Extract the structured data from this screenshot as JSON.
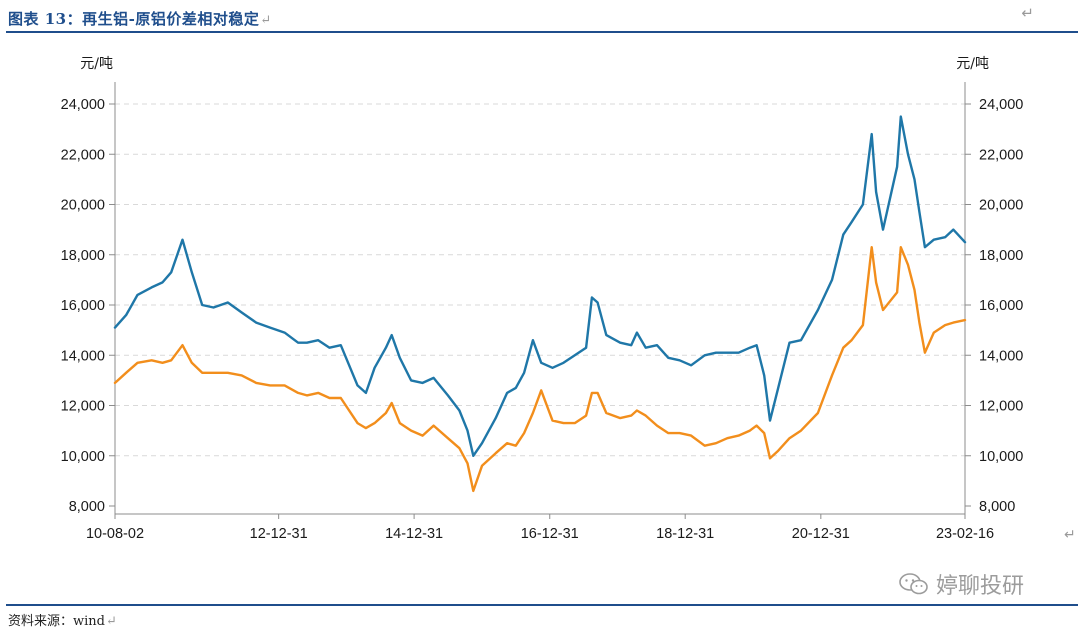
{
  "header": {
    "title": "图表 13：再生铝-原铝价差相对稳定",
    "return_mark": "↵"
  },
  "footer": {
    "source": "资料来源：wind",
    "return_mark": "↵"
  },
  "watermark": {
    "text": "婷聊投研",
    "icon": "wechat-icon"
  },
  "colors": {
    "blue_series": "#1f77a8",
    "orange_series": "#f28e1c",
    "rule": "#1f4e8c",
    "grid": "#d9d9d9"
  },
  "chart_data": {
    "type": "line",
    "left_unit": "元/吨",
    "right_unit": "元/吨",
    "xlim": [
      "2010-08-02",
      "2023-02-16"
    ],
    "ylim_left": [
      8000,
      24000
    ],
    "ylim_right": [
      8000,
      24000
    ],
    "y_ticks": [
      8000,
      10000,
      12000,
      14000,
      16000,
      18000,
      20000,
      22000,
      24000
    ],
    "y_tick_labels": [
      "8,000",
      "10,000",
      "12,000",
      "14,000",
      "16,000",
      "18,000",
      "20,000",
      "22,000",
      "24,000"
    ],
    "x_ticks": [
      "2010-08-02",
      "2012-12-31",
      "2014-12-31",
      "2016-12-31",
      "2018-12-31",
      "2020-12-31",
      "2023-02-16"
    ],
    "x_tick_labels": [
      "10-08-02",
      "12-12-31",
      "14-12-31",
      "16-12-31",
      "18-12-31",
      "20-12-31",
      "23-02-16"
    ],
    "grid": "horizontal dashed",
    "legend": "none",
    "series": [
      {
        "color": "#1f77a8",
        "points": [
          [
            "2010-08-02",
            15100
          ],
          [
            "2010-10-01",
            15600
          ],
          [
            "2010-12-01",
            16400
          ],
          [
            "2011-02-15",
            16700
          ],
          [
            "2011-04-15",
            16900
          ],
          [
            "2011-06-01",
            17300
          ],
          [
            "2011-08-01",
            18600
          ],
          [
            "2011-09-20",
            17300
          ],
          [
            "2011-11-15",
            16000
          ],
          [
            "2012-01-15",
            15900
          ],
          [
            "2012-04-01",
            16100
          ],
          [
            "2012-06-15",
            15700
          ],
          [
            "2012-09-01",
            15300
          ],
          [
            "2012-11-15",
            15100
          ],
          [
            "2013-02-01",
            14900
          ],
          [
            "2013-04-15",
            14500
          ],
          [
            "2013-06-01",
            14500
          ],
          [
            "2013-08-01",
            14600
          ],
          [
            "2013-10-01",
            14300
          ],
          [
            "2013-12-01",
            14400
          ],
          [
            "2014-03-01",
            12800
          ],
          [
            "2014-04-15",
            12500
          ],
          [
            "2014-06-01",
            13500
          ],
          [
            "2014-08-01",
            14300
          ],
          [
            "2014-09-01",
            14800
          ],
          [
            "2014-10-15",
            13900
          ],
          [
            "2014-12-15",
            13000
          ],
          [
            "2015-02-15",
            12900
          ],
          [
            "2015-04-15",
            13100
          ],
          [
            "2015-07-01",
            12400
          ],
          [
            "2015-09-01",
            11800
          ],
          [
            "2015-10-15",
            11000
          ],
          [
            "2015-11-15",
            10000
          ],
          [
            "2016-01-01",
            10500
          ],
          [
            "2016-03-15",
            11500
          ],
          [
            "2016-05-15",
            12500
          ],
          [
            "2016-07-01",
            12700
          ],
          [
            "2016-08-15",
            13300
          ],
          [
            "2016-10-01",
            14600
          ],
          [
            "2016-11-15",
            13700
          ],
          [
            "2017-01-15",
            13500
          ],
          [
            "2017-03-15",
            13700
          ],
          [
            "2017-05-15",
            14000
          ],
          [
            "2017-07-15",
            14300
          ],
          [
            "2017-08-15",
            16300
          ],
          [
            "2017-09-15",
            16100
          ],
          [
            "2017-11-01",
            14800
          ],
          [
            "2018-01-15",
            14500
          ],
          [
            "2018-03-15",
            14400
          ],
          [
            "2018-04-15",
            14900
          ],
          [
            "2018-06-01",
            14300
          ],
          [
            "2018-08-01",
            14400
          ],
          [
            "2018-10-01",
            13900
          ],
          [
            "2018-12-01",
            13800
          ],
          [
            "2019-02-01",
            13600
          ],
          [
            "2019-04-15",
            14000
          ],
          [
            "2019-06-15",
            14100
          ],
          [
            "2019-08-15",
            14100
          ],
          [
            "2019-10-15",
            14100
          ],
          [
            "2019-12-15",
            14300
          ],
          [
            "2020-01-20",
            14400
          ],
          [
            "2020-03-01",
            13200
          ],
          [
            "2020-04-01",
            11400
          ],
          [
            "2020-05-15",
            12700
          ],
          [
            "2020-07-15",
            14500
          ],
          [
            "2020-09-15",
            14600
          ],
          [
            "2020-12-15",
            15800
          ],
          [
            "2021-03-01",
            17000
          ],
          [
            "2021-05-01",
            18800
          ],
          [
            "2021-06-15",
            19300
          ],
          [
            "2021-08-15",
            20000
          ],
          [
            "2021-10-01",
            22800
          ],
          [
            "2021-10-25",
            20500
          ],
          [
            "2021-12-01",
            19000
          ],
          [
            "2022-02-15",
            21500
          ],
          [
            "2022-03-07",
            23500
          ],
          [
            "2022-04-15",
            22000
          ],
          [
            "2022-05-20",
            21000
          ],
          [
            "2022-06-15",
            19700
          ],
          [
            "2022-07-15",
            18300
          ],
          [
            "2022-09-01",
            18600
          ],
          [
            "2022-11-01",
            18700
          ],
          [
            "2022-12-15",
            19000
          ],
          [
            "2023-02-16",
            18500
          ]
        ]
      },
      {
        "color": "#f28e1c",
        "points": [
          [
            "2010-08-02",
            12900
          ],
          [
            "2010-10-01",
            13300
          ],
          [
            "2010-12-01",
            13700
          ],
          [
            "2011-02-15",
            13800
          ],
          [
            "2011-04-15",
            13700
          ],
          [
            "2011-06-01",
            13800
          ],
          [
            "2011-08-01",
            14400
          ],
          [
            "2011-09-20",
            13700
          ],
          [
            "2011-11-15",
            13300
          ],
          [
            "2012-01-15",
            13300
          ],
          [
            "2012-04-01",
            13300
          ],
          [
            "2012-06-15",
            13200
          ],
          [
            "2012-09-01",
            12900
          ],
          [
            "2012-11-15",
            12800
          ],
          [
            "2013-02-01",
            12800
          ],
          [
            "2013-04-15",
            12500
          ],
          [
            "2013-06-01",
            12400
          ],
          [
            "2013-08-01",
            12500
          ],
          [
            "2013-10-01",
            12300
          ],
          [
            "2013-12-01",
            12300
          ],
          [
            "2014-03-01",
            11300
          ],
          [
            "2014-04-15",
            11100
          ],
          [
            "2014-06-01",
            11300
          ],
          [
            "2014-08-01",
            11700
          ],
          [
            "2014-09-01",
            12100
          ],
          [
            "2014-10-15",
            11300
          ],
          [
            "2014-12-15",
            11000
          ],
          [
            "2015-02-15",
            10800
          ],
          [
            "2015-04-15",
            11200
          ],
          [
            "2015-07-01",
            10700
          ],
          [
            "2015-09-01",
            10300
          ],
          [
            "2015-10-15",
            9700
          ],
          [
            "2015-11-15",
            8600
          ],
          [
            "2016-01-01",
            9600
          ],
          [
            "2016-03-15",
            10100
          ],
          [
            "2016-05-15",
            10500
          ],
          [
            "2016-07-01",
            10400
          ],
          [
            "2016-08-15",
            10900
          ],
          [
            "2016-10-01",
            11700
          ],
          [
            "2016-11-15",
            12600
          ],
          [
            "2017-01-15",
            11400
          ],
          [
            "2017-03-15",
            11300
          ],
          [
            "2017-05-15",
            11300
          ],
          [
            "2017-07-15",
            11600
          ],
          [
            "2017-08-15",
            12500
          ],
          [
            "2017-09-15",
            12500
          ],
          [
            "2017-11-01",
            11700
          ],
          [
            "2018-01-15",
            11500
          ],
          [
            "2018-03-15",
            11600
          ],
          [
            "2018-04-15",
            11800
          ],
          [
            "2018-06-01",
            11600
          ],
          [
            "2018-08-01",
            11200
          ],
          [
            "2018-10-01",
            10900
          ],
          [
            "2018-12-01",
            10900
          ],
          [
            "2019-02-01",
            10800
          ],
          [
            "2019-04-15",
            10400
          ],
          [
            "2019-06-15",
            10500
          ],
          [
            "2019-08-15",
            10700
          ],
          [
            "2019-10-15",
            10800
          ],
          [
            "2019-12-15",
            11000
          ],
          [
            "2020-01-20",
            11200
          ],
          [
            "2020-03-01",
            10900
          ],
          [
            "2020-04-01",
            9900
          ],
          [
            "2020-05-15",
            10200
          ],
          [
            "2020-07-15",
            10700
          ],
          [
            "2020-09-15",
            11000
          ],
          [
            "2020-12-15",
            11700
          ],
          [
            "2021-03-01",
            13200
          ],
          [
            "2021-05-01",
            14300
          ],
          [
            "2021-06-15",
            14600
          ],
          [
            "2021-08-15",
            15200
          ],
          [
            "2021-10-01",
            18300
          ],
          [
            "2021-10-25",
            16900
          ],
          [
            "2021-12-01",
            15800
          ],
          [
            "2022-02-15",
            16500
          ],
          [
            "2022-03-07",
            18300
          ],
          [
            "2022-04-15",
            17600
          ],
          [
            "2022-05-20",
            16600
          ],
          [
            "2022-06-15",
            15300
          ],
          [
            "2022-07-15",
            14100
          ],
          [
            "2022-09-01",
            14900
          ],
          [
            "2022-11-01",
            15200
          ],
          [
            "2022-12-15",
            15300
          ],
          [
            "2023-02-16",
            15400
          ]
        ]
      }
    ]
  }
}
